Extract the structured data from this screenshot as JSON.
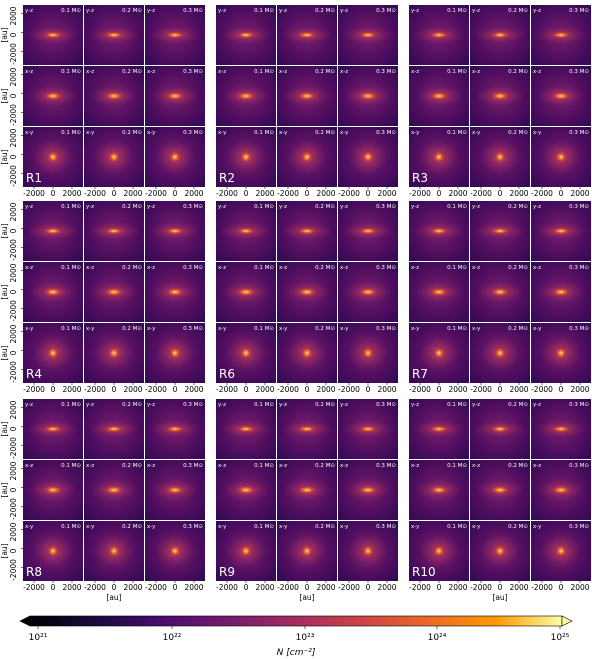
{
  "figure": {
    "run_labels": [
      "R1",
      "R2",
      "R3",
      "R4",
      "R6",
      "R7",
      "R8",
      "R9",
      "R10"
    ],
    "row_projections": [
      "y-z",
      "x-z",
      "x-y"
    ],
    "masses": [
      "0.1 M⊙",
      "0.2 M⊙",
      "0.3 M⊙"
    ],
    "y_tick_labels": [
      "2000",
      "0",
      "-2000"
    ],
    "x_tick_labels": [
      "-2000",
      "0",
      "2000"
    ],
    "axis_unit_label": "[au]",
    "colorbar": {
      "label": "N [cm⁻²]",
      "ticks": [
        "10²¹",
        "10²²",
        "10²³",
        "10²⁴",
        "10²⁵"
      ],
      "colormap": "inferno"
    }
  }
}
